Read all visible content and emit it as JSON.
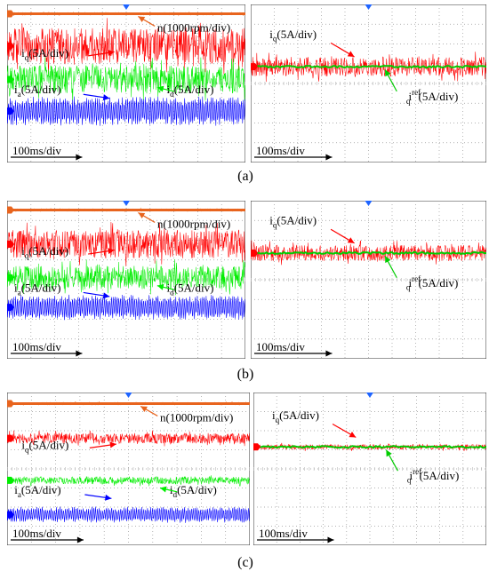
{
  "colors": {
    "speed": "#e8641e",
    "iq": "#ff0000",
    "id": "#00ee00",
    "ia": "#0000ff",
    "iq_ref": "#00cc00",
    "grid": "#999999",
    "marker": "#1e64ff"
  },
  "chart_data": [
    {
      "type": "line",
      "row": "a",
      "caption": "(a)",
      "left": {
        "time_scale": "100ms/div",
        "labels": {
          "speed": "n(1000rpm/div)",
          "iq": "i",
          "iq_sub": "q",
          "iq_unit": "(5A/div)",
          "id": "i",
          "id_sub": "d",
          "id_unit": "(5A/div)",
          "ia": "i",
          "ia_sub": "a",
          "ia_unit": "(5A/div)"
        },
        "series": [
          {
            "name": "n",
            "center_div": 0.2,
            "noise": 0.04
          },
          {
            "name": "iq",
            "center_div": 1.7,
            "noise": 1.0
          },
          {
            "name": "id",
            "center_div": 3.4,
            "noise": 0.8
          },
          {
            "name": "ia",
            "center_div": 5.0,
            "noise": 0.7,
            "osc": true
          }
        ]
      },
      "right": {
        "time_scale": "100ms/div",
        "labels": {
          "iq": "i",
          "iq_sub": "q",
          "iq_unit": "(5A/div)",
          "ref": "i",
          "ref_sub": "q",
          "ref_sup": "ref",
          "ref_unit": "(5A/div)"
        },
        "series": [
          {
            "name": "iq",
            "center_div": 3.5,
            "noise": 0.55
          },
          {
            "name": "iq_ref",
            "center_div": 3.5,
            "noise": 0.03
          }
        ]
      }
    },
    {
      "type": "line",
      "row": "b",
      "caption": "(b)",
      "left": {
        "time_scale": "100ms/div",
        "labels": {
          "speed": "n(1000rpm/div)",
          "iq": "i",
          "iq_sub": "q",
          "iq_unit": "(5A/div)",
          "id": "i",
          "id_sub": "d",
          "id_unit": "(5A/div)",
          "ia": "i",
          "ia_sub": "a",
          "ia_unit": "(5A/div)"
        },
        "series": [
          {
            "name": "n",
            "center_div": 0.2,
            "noise": 0.04
          },
          {
            "name": "iq",
            "center_div": 1.8,
            "noise": 0.8
          },
          {
            "name": "id",
            "center_div": 3.5,
            "noise": 0.65
          },
          {
            "name": "ia",
            "center_div": 5.0,
            "noise": 0.6,
            "osc": true
          }
        ]
      },
      "right": {
        "time_scale": "100ms/div",
        "labels": {
          "iq": "i",
          "iq_sub": "q",
          "iq_unit": "(5A/div)",
          "ref": "i",
          "ref_sub": "q",
          "ref_sup": "ref",
          "ref_unit": "(5A/div)"
        },
        "series": [
          {
            "name": "iq",
            "center_div": 3.0,
            "noise": 0.45
          },
          {
            "name": "iq_ref",
            "center_div": 3.0,
            "noise": 0.02
          }
        ]
      }
    },
    {
      "type": "line",
      "row": "c",
      "caption": "(c)",
      "left": {
        "time_scale": "100ms/div",
        "labels": {
          "speed": "n(1000rpm/div)",
          "iq": "i",
          "iq_sub": "q",
          "iq_unit": "(5A/div)",
          "id": "i",
          "id_sub": "d",
          "id_unit": "(5A/div)",
          "ia": "i",
          "ia_sub": "a",
          "ia_unit": "(5A/div)"
        },
        "series": [
          {
            "name": "n",
            "center_div": 0.3,
            "noise": 0.03
          },
          {
            "name": "iq",
            "center_div": 2.0,
            "noise": 0.3
          },
          {
            "name": "id",
            "center_div": 4.2,
            "noise": 0.22
          },
          {
            "name": "ia",
            "center_div": 6.0,
            "noise": 0.4,
            "osc": true
          }
        ]
      },
      "right": {
        "time_scale": "100ms/div",
        "labels": {
          "iq": "i",
          "iq_sub": "q",
          "iq_unit": "(5A/div)",
          "ref": "i",
          "ref_sub": "q",
          "ref_sup": "ref",
          "ref_unit": "(5A/div)"
        },
        "series": [
          {
            "name": "iq",
            "center_div": 3.2,
            "noise": 0.15
          },
          {
            "name": "iq_ref",
            "center_div": 3.2,
            "noise": 0.02
          }
        ]
      }
    }
  ]
}
